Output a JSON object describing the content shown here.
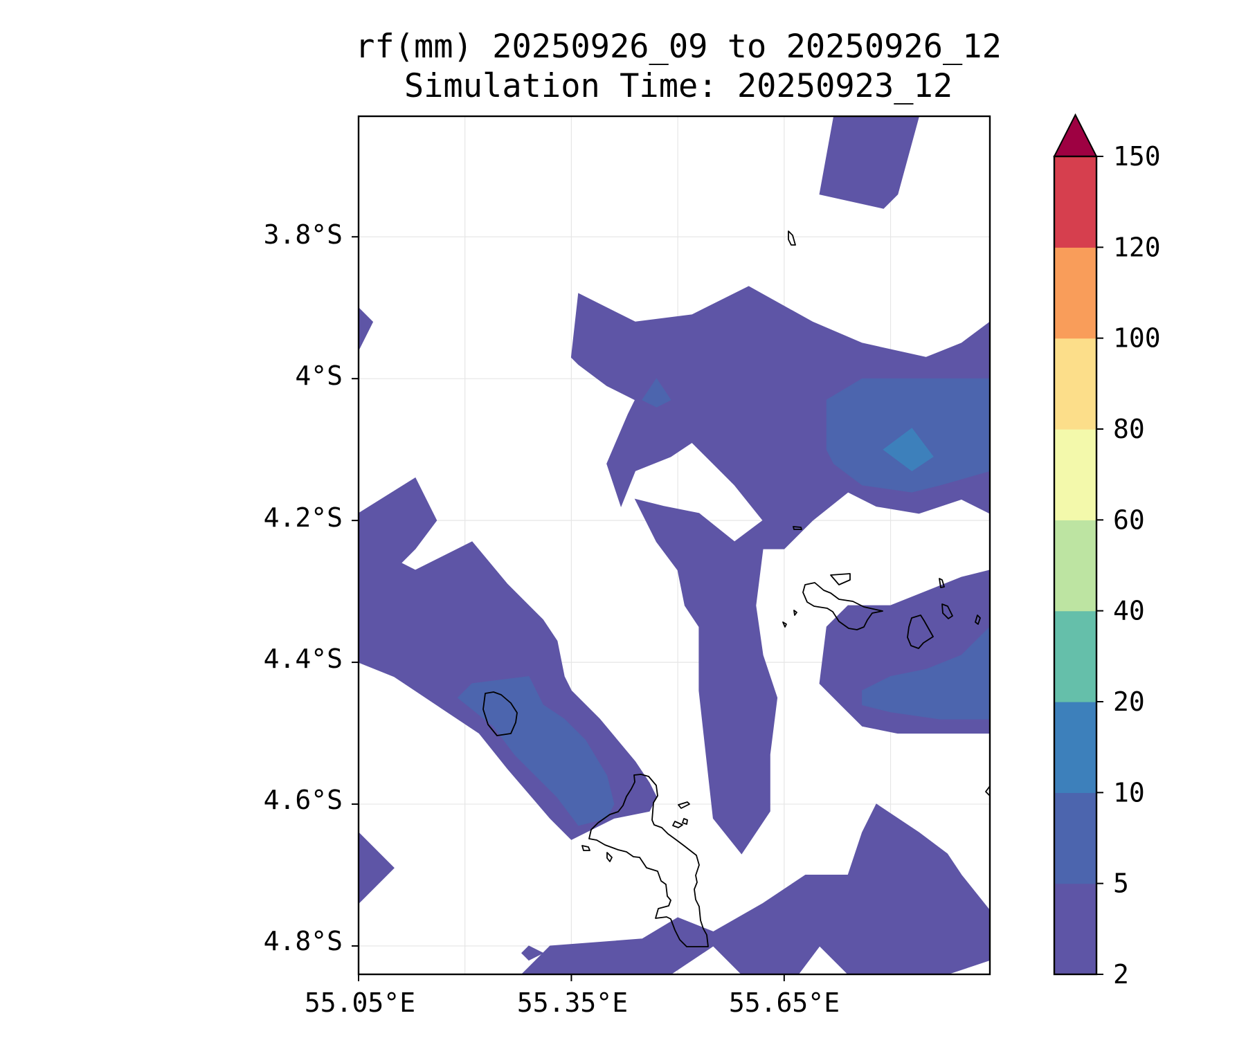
{
  "chart_data": {
    "type": "heatmap",
    "title": "rf(mm) 20250926_09 to 20250926_12",
    "subtitle": "Simulation Time: 20250923_12",
    "x_ticks": [
      "55.05°E",
      "55.35°E",
      "55.65°E"
    ],
    "y_ticks": [
      "3.8°S",
      "4°S",
      "4.2°S",
      "4.4°S",
      "4.6°S",
      "4.8°S"
    ],
    "xlim": [
      55.05,
      55.94
    ],
    "ylim": [
      -4.84,
      -3.63
    ],
    "grid": true,
    "colorbar": {
      "levels": [
        2,
        5,
        10,
        20,
        40,
        60,
        80,
        100,
        120,
        150
      ],
      "tick_labels": [
        "2",
        "5",
        "10",
        "20",
        "40",
        "60",
        "80",
        "100",
        "120",
        "150"
      ],
      "colors": [
        "#5e55a6",
        "#4c65ae",
        "#3d80bb",
        "#65bfaa",
        "#bde4a2",
        "#f3f9ab",
        "#fcde8a",
        "#f99d5a",
        "#d63f4e"
      ],
      "extend_color": "#9e0142",
      "extend": "max"
    },
    "regions_level_2_5": [
      [
        [
          55.72,
          -3.63
        ],
        [
          55.84,
          -3.63
        ],
        [
          55.81,
          -3.74
        ],
        [
          55.79,
          -3.76
        ],
        [
          55.7,
          -3.74
        ]
      ],
      [
        [
          55.36,
          -3.88
        ],
        [
          55.44,
          -3.92
        ],
        [
          55.52,
          -3.91
        ],
        [
          55.6,
          -3.87
        ],
        [
          55.69,
          -3.92
        ],
        [
          55.76,
          -3.95
        ],
        [
          55.85,
          -3.97
        ],
        [
          55.9,
          -3.95
        ],
        [
          55.94,
          -3.92
        ],
        [
          55.94,
          -4.19
        ],
        [
          55.9,
          -4.17
        ],
        [
          55.84,
          -4.19
        ],
        [
          55.78,
          -4.18
        ],
        [
          55.74,
          -4.16
        ],
        [
          55.69,
          -4.2
        ],
        [
          55.65,
          -4.24
        ],
        [
          55.62,
          -4.24
        ],
        [
          55.61,
          -4.32
        ],
        [
          55.62,
          -4.39
        ],
        [
          55.64,
          -4.45
        ],
        [
          55.63,
          -4.53
        ],
        [
          55.63,
          -4.61
        ],
        [
          55.59,
          -4.67
        ],
        [
          55.55,
          -4.62
        ],
        [
          55.54,
          -4.53
        ],
        [
          55.53,
          -4.44
        ],
        [
          55.53,
          -4.35
        ],
        [
          55.51,
          -4.32
        ],
        [
          55.5,
          -4.27
        ],
        [
          55.47,
          -4.23
        ],
        [
          55.44,
          -4.17
        ],
        [
          55.48,
          -4.18
        ],
        [
          55.53,
          -4.19
        ],
        [
          55.58,
          -4.23
        ],
        [
          55.62,
          -4.2
        ],
        [
          55.58,
          -4.15
        ],
        [
          55.55,
          -4.12
        ],
        [
          55.52,
          -4.09
        ],
        [
          55.49,
          -4.11
        ],
        [
          55.44,
          -4.13
        ],
        [
          55.42,
          -4.18
        ],
        [
          55.4,
          -4.12
        ],
        [
          55.43,
          -4.05
        ],
        [
          55.44,
          -4.03
        ],
        [
          55.4,
          -4.01
        ],
        [
          55.36,
          -3.98
        ],
        [
          55.35,
          -3.97
        ]
      ],
      [
        [
          55.05,
          -3.9
        ],
        [
          55.07,
          -3.92
        ],
        [
          55.05,
          -3.96
        ]
      ],
      [
        [
          55.05,
          -4.19
        ],
        [
          55.13,
          -4.14
        ],
        [
          55.16,
          -4.2
        ],
        [
          55.13,
          -4.24
        ],
        [
          55.11,
          -4.26
        ],
        [
          55.13,
          -4.27
        ],
        [
          55.21,
          -4.23
        ],
        [
          55.26,
          -4.29
        ],
        [
          55.31,
          -4.34
        ],
        [
          55.33,
          -4.37
        ],
        [
          55.34,
          -4.42
        ],
        [
          55.35,
          -4.44
        ],
        [
          55.39,
          -4.48
        ],
        [
          55.44,
          -4.54
        ],
        [
          55.46,
          -4.57
        ],
        [
          55.47,
          -4.59
        ],
        [
          55.46,
          -4.61
        ],
        [
          55.41,
          -4.62
        ],
        [
          55.35,
          -4.65
        ],
        [
          55.32,
          -4.62
        ],
        [
          55.26,
          -4.55
        ],
        [
          55.22,
          -4.5
        ],
        [
          55.16,
          -4.46
        ],
        [
          55.13,
          -4.44
        ],
        [
          55.1,
          -4.42
        ],
        [
          55.05,
          -4.4
        ]
      ],
      [
        [
          55.71,
          -4.35
        ],
        [
          55.74,
          -4.32
        ],
        [
          55.8,
          -4.32
        ],
        [
          55.85,
          -4.3
        ],
        [
          55.9,
          -4.28
        ],
        [
          55.94,
          -4.27
        ],
        [
          55.94,
          -4.5
        ],
        [
          55.87,
          -4.5
        ],
        [
          55.81,
          -4.5
        ],
        [
          55.76,
          -4.49
        ],
        [
          55.73,
          -4.46
        ],
        [
          55.7,
          -4.43
        ]
      ],
      [
        [
          55.05,
          -4.64
        ],
        [
          55.1,
          -4.69
        ],
        [
          55.05,
          -4.74
        ]
      ],
      [
        [
          55.28,
          -4.84
        ],
        [
          55.32,
          -4.8
        ],
        [
          55.45,
          -4.79
        ],
        [
          55.5,
          -4.76
        ],
        [
          55.55,
          -4.78
        ],
        [
          55.62,
          -4.74
        ],
        [
          55.68,
          -4.7
        ],
        [
          55.74,
          -4.7
        ],
        [
          55.76,
          -4.64
        ],
        [
          55.78,
          -4.6
        ],
        [
          55.84,
          -4.64
        ],
        [
          55.88,
          -4.67
        ],
        [
          55.9,
          -4.7
        ],
        [
          55.94,
          -4.75
        ],
        [
          55.94,
          -4.82
        ],
        [
          55.88,
          -4.84
        ],
        [
          55.74,
          -4.84
        ],
        [
          55.7,
          -4.8
        ],
        [
          55.67,
          -4.84
        ],
        [
          55.59,
          -4.84
        ],
        [
          55.55,
          -4.8
        ],
        [
          55.49,
          -4.84
        ]
      ],
      [
        [
          55.29,
          -4.82
        ],
        [
          55.31,
          -4.81
        ],
        [
          55.29,
          -4.8
        ],
        [
          55.28,
          -4.81
        ]
      ]
    ],
    "regions_level_5_10": [
      [
        [
          55.47,
          -4.0
        ],
        [
          55.49,
          -4.03
        ],
        [
          55.47,
          -4.04
        ],
        [
          55.45,
          -4.03
        ]
      ],
      [
        [
          55.71,
          -4.03
        ],
        [
          55.76,
          -4.0
        ],
        [
          55.94,
          -4.0
        ],
        [
          55.94,
          -4.13
        ],
        [
          55.87,
          -4.15
        ],
        [
          55.83,
          -4.16
        ],
        [
          55.76,
          -4.15
        ],
        [
          55.72,
          -4.12
        ],
        [
          55.71,
          -4.1
        ]
      ],
      [
        [
          55.19,
          -4.45
        ],
        [
          55.21,
          -4.43
        ],
        [
          55.29,
          -4.42
        ],
        [
          55.31,
          -4.46
        ],
        [
          55.34,
          -4.48
        ],
        [
          55.37,
          -4.51
        ],
        [
          55.4,
          -4.56
        ],
        [
          55.41,
          -4.6
        ],
        [
          55.4,
          -4.62
        ],
        [
          55.36,
          -4.63
        ],
        [
          55.33,
          -4.59
        ],
        [
          55.3,
          -4.56
        ],
        [
          55.27,
          -4.53
        ],
        [
          55.24,
          -4.49
        ]
      ],
      [
        [
          55.76,
          -4.44
        ],
        [
          55.8,
          -4.42
        ],
        [
          55.85,
          -4.41
        ],
        [
          55.9,
          -4.39
        ],
        [
          55.94,
          -4.35
        ],
        [
          55.94,
          -4.48
        ],
        [
          55.87,
          -4.48
        ],
        [
          55.8,
          -4.47
        ],
        [
          55.76,
          -4.46
        ]
      ]
    ],
    "regions_level_10_20": [
      [
        [
          55.79,
          -4.1
        ],
        [
          55.83,
          -4.07
        ],
        [
          55.86,
          -4.11
        ],
        [
          55.83,
          -4.13
        ]
      ]
    ]
  }
}
